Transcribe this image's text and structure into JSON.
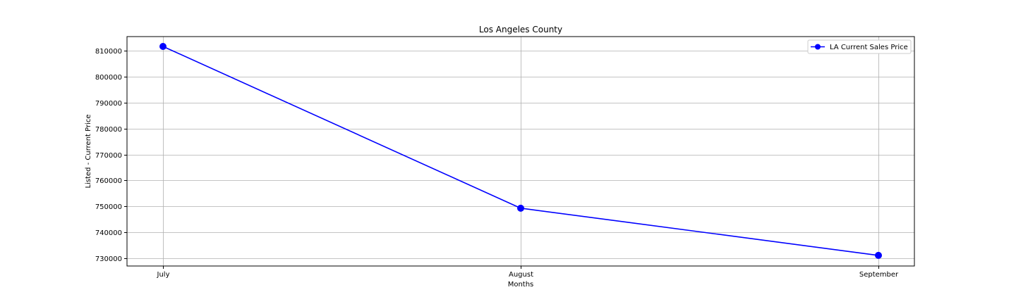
{
  "chart_data": {
    "type": "line",
    "title": "Los Angeles County",
    "xlabel": "Months",
    "ylabel": "Listed - Current Price",
    "categories": [
      "July",
      "August",
      "September"
    ],
    "series": [
      {
        "name": "LA Current Sales Price",
        "values": [
          811700,
          749300,
          731100
        ],
        "color": "#0000ff",
        "marker": "circle"
      }
    ],
    "ylim": [
      727000,
      815500
    ],
    "yticks": [
      730000,
      740000,
      750000,
      760000,
      770000,
      780000,
      790000,
      800000,
      810000
    ],
    "ytick_labels": [
      "730000",
      "740000",
      "750000",
      "760000",
      "770000",
      "780000",
      "790000",
      "800000",
      "810000"
    ],
    "grid": true,
    "legend_position": "top-right"
  }
}
